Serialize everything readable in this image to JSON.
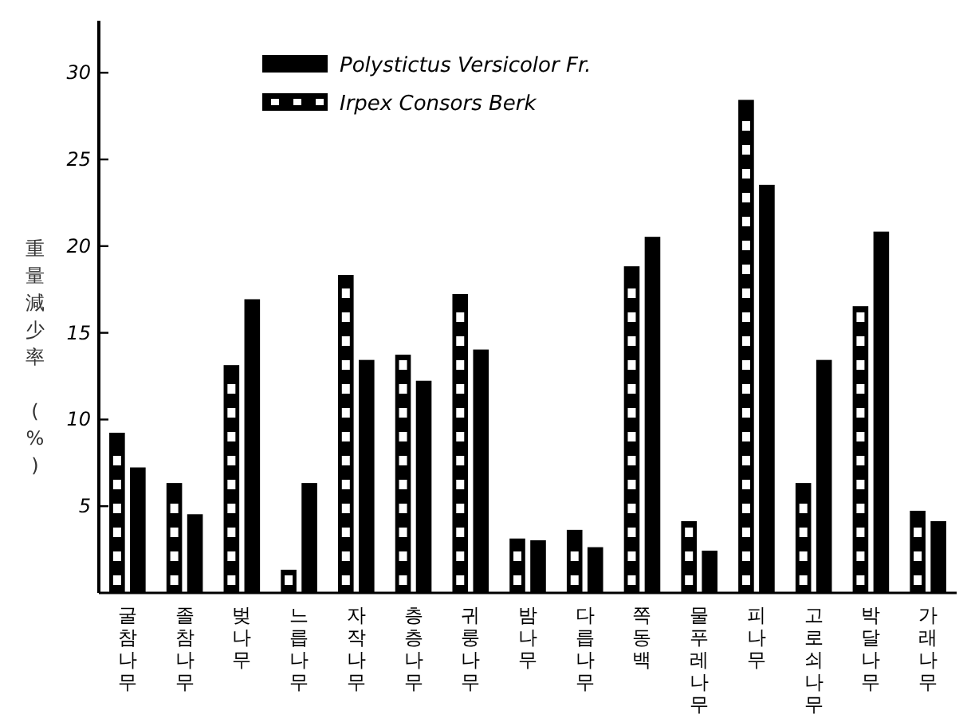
{
  "chart_data": {
    "type": "bar",
    "ylabel": "重量減少率 (%)",
    "categories": [
      "굴참나무",
      "졸참나무",
      "벚나무",
      "느릅나무",
      "자작나무",
      "층층나무",
      "귀룽나무",
      "밤나무",
      "다릅나무",
      "쪽동백",
      "물푸레나무",
      "피나무",
      "고로쇠나무",
      "박달나무",
      "가래나무"
    ],
    "series": [
      {
        "name": "Irpex Consors Berk",
        "color": "#000000",
        "values": [
          9.2,
          6.3,
          13.1,
          1.3,
          18.3,
          13.7,
          17.2,
          3.1,
          3.6,
          18.8,
          4.1,
          28.4,
          6.3,
          16.5,
          4.7
        ]
      },
      {
        "name": "Polystictus Versicolor Fr.",
        "color": "#000000",
        "values": [
          7.2,
          4.5,
          16.9,
          6.3,
          13.4,
          12.2,
          14.0,
          3.0,
          2.6,
          20.5,
          2.4,
          23.5,
          13.4,
          20.8,
          4.1
        ]
      }
    ],
    "ylim": [
      0,
      33
    ],
    "yticks": [
      5,
      10,
      15,
      20,
      25,
      30
    ],
    "grid": false,
    "legend": "top left"
  }
}
